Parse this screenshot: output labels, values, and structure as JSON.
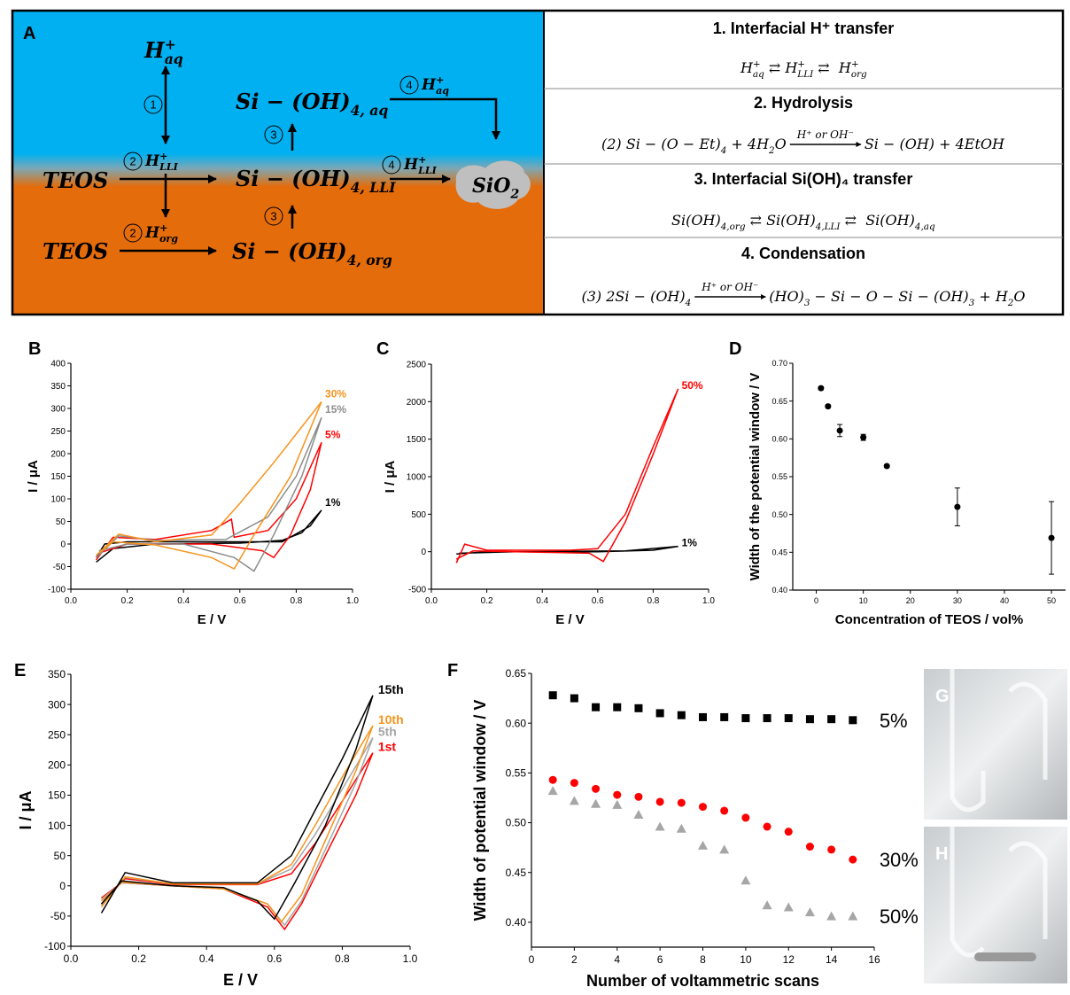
{
  "panel_a": {
    "label": "A",
    "species": [
      [
        {
          "t": "H",
          "sup": "+",
          "sub": "aq"
        }
      ],
      [
        {
          "t": "TEOS"
        }
      ],
      [
        {
          "t": "TEOS"
        }
      ],
      [
        {
          "t": "Si − (OH)",
          "sub": "4, aq"
        }
      ],
      [
        {
          "t": "Si − (OH)",
          "sub": "4, LLI"
        }
      ],
      [
        {
          "t": "Si − (OH)",
          "sub": "4, org"
        }
      ],
      [
        {
          "t": "SiO",
          "sub": "2"
        }
      ]
    ],
    "steps": [
      {
        "num": "1"
      },
      {
        "num": "2",
        "segs": [
          {
            "t": "H",
            "sup": "+",
            "sub": "LLI"
          }
        ]
      },
      {
        "num": "3"
      },
      {
        "num": "4",
        "segs": [
          {
            "t": "H",
            "sup": "+",
            "sub": "aq"
          }
        ]
      },
      {
        "num": "4",
        "segs": [
          {
            "t": "H",
            "sup": "+",
            "sub": "LLI"
          }
        ]
      },
      {
        "num": "3"
      },
      {
        "num": "2",
        "segs": [
          {
            "t": "H",
            "sup": "+",
            "sub": "org"
          }
        ]
      }
    ],
    "table": [
      {
        "title": "1. Interfacial H⁺ transfer",
        "equation": {
          "left": [
            {
              "t": "H",
              "sup": "+",
              "sub": "aq"
            },
            {
              "t": " ⇄ H",
              "sup": "+",
              "sub": "LLI"
            },
            {
              "t": " ⇄  H",
              "sup": "+",
              "sub": "org"
            }
          ]
        }
      },
      {
        "title": "2. Hydrolysis",
        "equation": {
          "left": [
            {
              "t": "(2) Si − (O − Et)",
              "sub": "4"
            },
            {
              "t": " + 4H",
              "sub": "2"
            },
            {
              "t": "O"
            }
          ],
          "arrow_label": "H⁺ or OH⁻",
          "right": [
            {
              "t": "Si − (OH) + 4EtOH"
            }
          ]
        }
      },
      {
        "title": "3. Interfacial Si(OH)₄ transfer",
        "equation": {
          "left": [
            {
              "t": "Si(OH)",
              "sub": "4,org"
            },
            {
              "t": " ⇄ Si(OH)",
              "sub": "4,LLI"
            },
            {
              "t": " ⇄  Si(OH)",
              "sub": "4,aq"
            }
          ]
        }
      },
      {
        "title": "4. Condensation",
        "equation": {
          "left": [
            {
              "t": "(3) 2Si − (OH)",
              "sub": "4"
            }
          ],
          "arrow_label": "H⁺ or OH⁻",
          "right": [
            {
              "t": "(HO)",
              "sub": "3"
            },
            {
              "t": " − Si − O − Si − (OH)",
              "sub": "3"
            },
            {
              "t": " + H",
              "sub": "2"
            },
            {
              "t": "O"
            }
          ]
        }
      }
    ]
  },
  "chart_data": [
    {
      "panel": "B",
      "type": "line",
      "xlabel": "E / V",
      "ylabel": "I / μA",
      "xlim": [
        0,
        1
      ],
      "ylim": [
        -100,
        400
      ],
      "xticks": [
        {
          "value": 0,
          "label": "0.0"
        },
        0.2,
        0.4,
        0.6,
        0.8,
        {
          "value": 1,
          "label": "1.0"
        }
      ],
      "yticks": [
        -100,
        -50,
        0,
        50,
        100,
        150,
        200,
        250,
        300,
        350,
        400
      ],
      "series": [
        {
          "name": "1%",
          "color": "#000000",
          "x": [
            0.09,
            0.15,
            0.3,
            0.6,
            0.75,
            0.82,
            0.89,
            0.85,
            0.75,
            0.5,
            0.2,
            0.12,
            0.09
          ],
          "values": [
            -40,
            -10,
            0,
            2,
            8,
            25,
            75,
            40,
            5,
            5,
            5,
            0,
            -30
          ]
        },
        {
          "name": "5%",
          "color": "#ff0000",
          "x": [
            0.09,
            0.15,
            0.3,
            0.5,
            0.57,
            0.58,
            0.7,
            0.8,
            0.89,
            0.85,
            0.78,
            0.72,
            0.68,
            0.5,
            0.2,
            0.1
          ],
          "values": [
            -35,
            15,
            10,
            30,
            55,
            15,
            30,
            100,
            225,
            120,
            20,
            -30,
            -15,
            0,
            0,
            -20
          ]
        },
        {
          "name": "15%",
          "color": "#8c8c8c",
          "x": [
            0.09,
            0.17,
            0.3,
            0.55,
            0.7,
            0.8,
            0.89,
            0.82,
            0.72,
            0.65,
            0.58,
            0.4,
            0.2,
            0.1
          ],
          "values": [
            -30,
            18,
            8,
            10,
            60,
            150,
            280,
            150,
            20,
            -60,
            -30,
            0,
            0,
            -15
          ]
        },
        {
          "name": "30%",
          "color": "#f7941d",
          "x": [
            0.09,
            0.17,
            0.3,
            0.5,
            0.6,
            0.72,
            0.89,
            0.78,
            0.65,
            0.58,
            0.5,
            0.3,
            0.15,
            0.1
          ],
          "values": [
            -25,
            22,
            5,
            20,
            90,
            180,
            315,
            150,
            20,
            -55,
            -30,
            -2,
            5,
            -20
          ]
        }
      ]
    },
    {
      "panel": "C",
      "type": "line",
      "xlabel": "E / V",
      "ylabel": "I / μA",
      "xlim": [
        0,
        1
      ],
      "ylim": [
        -500,
        2500
      ],
      "xticks": [
        {
          "value": 0,
          "label": "0.0"
        },
        0.2,
        0.4,
        0.6,
        0.8,
        {
          "value": 1,
          "label": "1.0"
        }
      ],
      "yticks": [
        -500,
        0,
        500,
        1000,
        1500,
        2000,
        2500
      ],
      "series": [
        {
          "name": "1%",
          "color": "#000000",
          "x": [
            0.09,
            0.2,
            0.6,
            0.8,
            0.89,
            0.7,
            0.3,
            0.1
          ],
          "values": [
            -30,
            0,
            0,
            20,
            70,
            10,
            0,
            -20
          ]
        },
        {
          "name": "50%",
          "color": "#ff0000",
          "x": [
            0.09,
            0.12,
            0.2,
            0.5,
            0.6,
            0.7,
            0.8,
            0.89,
            0.8,
            0.7,
            0.62,
            0.57,
            0.3,
            0.15,
            0.09
          ],
          "values": [
            -150,
            100,
            20,
            20,
            40,
            500,
            1400,
            2170,
            1300,
            400,
            -130,
            -20,
            0,
            10,
            -100
          ]
        }
      ]
    },
    {
      "panel": "D",
      "type": "scatter",
      "xlabel": "Concentration of TEOS / vol%",
      "ylabel": "Width of the potential window / V",
      "xlim": [
        -5,
        53
      ],
      "ylim": [
        0.4,
        0.7
      ],
      "xticks": [
        0,
        10,
        20,
        30,
        40,
        50
      ],
      "yticks": [
        {
          "value": 0.4,
          "label": "0.40"
        },
        0.45,
        {
          "value": 0.5,
          "label": "0.50"
        },
        0.55,
        {
          "value": 0.6,
          "label": "0.60"
        },
        0.65,
        {
          "value": 0.7,
          "label": "0.70"
        }
      ],
      "color": "#000000",
      "x": [
        1,
        2.5,
        5,
        10,
        15,
        30,
        50
      ],
      "values": [
        0.667,
        0.643,
        0.611,
        0.602,
        0.564,
        0.51,
        0.469
      ],
      "errors": [
        0.002,
        0.002,
        0.008,
        0.004,
        0.002,
        0.025,
        0.048
      ]
    },
    {
      "panel": "E",
      "type": "line",
      "xlabel": "E / V",
      "ylabel": "I / μA",
      "xlim": [
        0,
        1
      ],
      "ylim": [
        -100,
        350
      ],
      "xticks": [
        {
          "value": 0,
          "label": "0.0"
        },
        0.2,
        0.4,
        0.6,
        0.8,
        {
          "value": 1,
          "label": "1.0"
        }
      ],
      "yticks": [
        -100,
        -50,
        0,
        50,
        100,
        150,
        200,
        250,
        300,
        350
      ],
      "series": [
        {
          "name": "1st",
          "color": "#ff0000",
          "x": [
            0.09,
            0.16,
            0.3,
            0.55,
            0.65,
            0.72,
            0.8,
            0.89,
            0.84,
            0.75,
            0.68,
            0.63,
            0.58,
            0.45,
            0.3,
            0.15,
            0.09
          ],
          "values": [
            -30,
            12,
            2,
            2,
            20,
            70,
            140,
            220,
            150,
            50,
            -30,
            -72,
            -35,
            -5,
            0,
            5,
            -20
          ]
        },
        {
          "name": "5th",
          "color": "#a6a6a6",
          "x": [
            0.09,
            0.16,
            0.3,
            0.55,
            0.65,
            0.72,
            0.8,
            0.89,
            0.84,
            0.75,
            0.68,
            0.63,
            0.58,
            0.45,
            0.3,
            0.15,
            0.09
          ],
          "values": [
            -32,
            14,
            3,
            3,
            28,
            85,
            160,
            245,
            170,
            60,
            -25,
            -65,
            -30,
            -5,
            0,
            5,
            -22
          ]
        },
        {
          "name": "10th",
          "color": "#f7941d",
          "x": [
            0.09,
            0.16,
            0.3,
            0.55,
            0.65,
            0.72,
            0.8,
            0.89,
            0.84,
            0.75,
            0.68,
            0.62,
            0.58,
            0.45,
            0.3,
            0.15,
            0.09
          ],
          "values": [
            -35,
            15,
            3,
            3,
            35,
            100,
            180,
            265,
            190,
            75,
            -15,
            -60,
            -30,
            -5,
            0,
            6,
            -25
          ]
        },
        {
          "name": "15th",
          "color": "#000000",
          "x": [
            0.09,
            0.16,
            0.3,
            0.55,
            0.65,
            0.72,
            0.8,
            0.89,
            0.84,
            0.75,
            0.66,
            0.6,
            0.55,
            0.45,
            0.3,
            0.15,
            0.09
          ],
          "values": [
            -45,
            22,
            5,
            5,
            50,
            125,
            210,
            315,
            225,
            100,
            5,
            -55,
            -25,
            -3,
            0,
            8,
            -30
          ]
        }
      ]
    },
    {
      "panel": "F",
      "type": "scatter",
      "xlabel": "Number of voltammetric scans",
      "ylabel": "Width of potential window / V",
      "xlim": [
        0,
        16
      ],
      "ylim": [
        0.375,
        0.65
      ],
      "xticks": [
        0,
        2,
        4,
        6,
        8,
        10,
        12,
        14,
        16
      ],
      "yticks": [
        {
          "value": 0.4,
          "label": "0.40"
        },
        0.45,
        {
          "value": 0.5,
          "label": "0.50"
        },
        0.55,
        {
          "value": 0.6,
          "label": "0.60"
        },
        0.65
      ],
      "x": [
        1,
        2,
        3,
        4,
        5,
        6,
        7,
        8,
        9,
        10,
        11,
        12,
        13,
        14,
        15
      ],
      "series": [
        {
          "name": "5%",
          "color": "#000000",
          "marker": "square",
          "values": [
            0.628,
            0.625,
            0.616,
            0.616,
            0.615,
            0.61,
            0.608,
            0.606,
            0.606,
            0.605,
            0.605,
            0.605,
            0.604,
            0.604,
            0.603
          ]
        },
        {
          "name": "30%",
          "color": "#ff0000",
          "marker": "circle",
          "values": [
            0.543,
            0.54,
            0.534,
            0.528,
            0.526,
            0.521,
            0.52,
            0.516,
            0.512,
            0.505,
            0.496,
            0.491,
            0.476,
            0.473,
            0.463
          ]
        },
        {
          "name": "50%",
          "color": "#a6a6a6",
          "marker": "triangle",
          "values": [
            0.532,
            0.522,
            0.519,
            0.518,
            0.508,
            0.496,
            0.494,
            0.477,
            0.473,
            0.442,
            0.417,
            0.415,
            0.41,
            0.406,
            0.406
          ]
        }
      ]
    }
  ],
  "photos": [
    {
      "label": "G"
    },
    {
      "label": "H"
    }
  ]
}
